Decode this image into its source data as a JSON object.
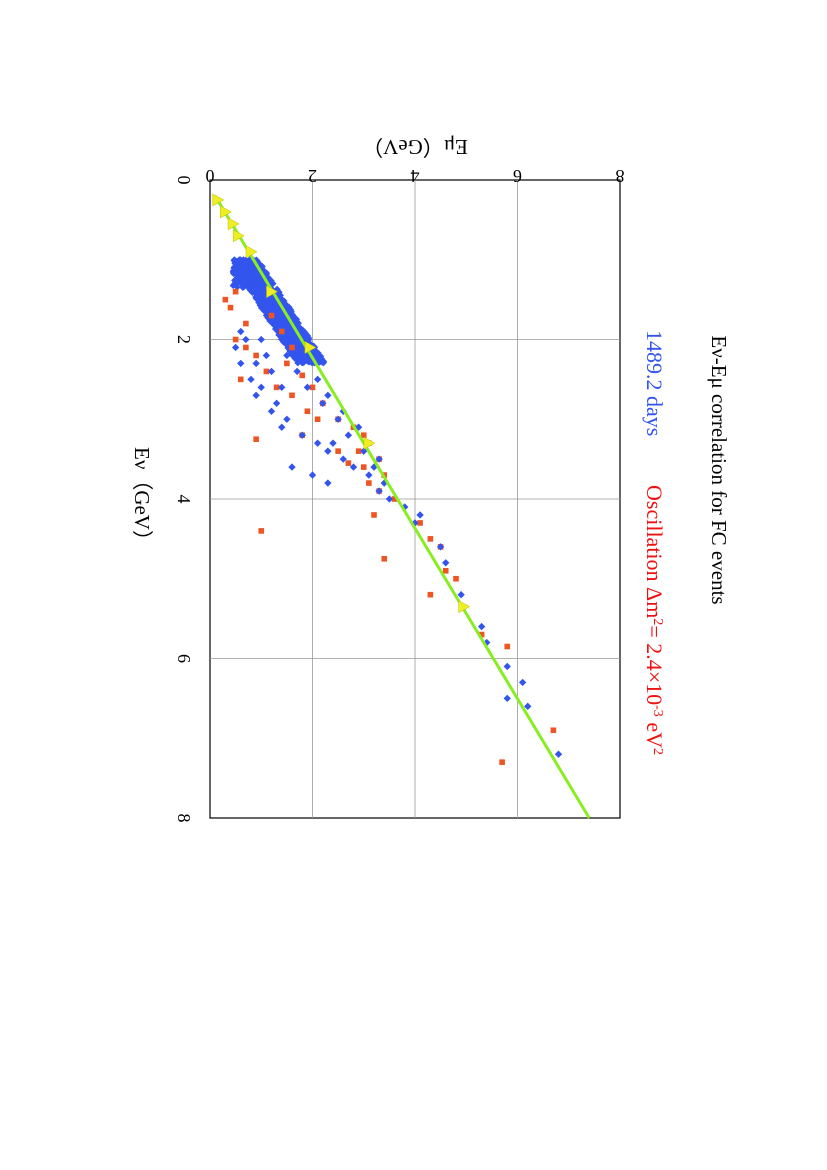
{
  "chart_data": {
    "type": "scatter",
    "title": "Eν-Eμ correlation for FC events",
    "exposure_label": "1489.2 days",
    "oscillation_label": {
      "prefix": "Oscillation Δm",
      "sup1": "2",
      "mid": "= 2.4×10",
      "sup2": "-3",
      "unit": " eV",
      "sup3": "2"
    },
    "xlabel": "Eν（GeV）",
    "ylabel": "Eμ（GeV）",
    "xlim": [
      0,
      8
    ],
    "ylim": [
      0,
      8
    ],
    "x_ticks": [
      "0",
      "2",
      "4",
      "6",
      "8"
    ],
    "y_ticks": [
      "0",
      "2",
      "4",
      "6",
      "8"
    ],
    "grid": true,
    "orientation": "rotated 90° clockwise on the page",
    "colors": {
      "blue_series": "#3355ee",
      "red_series": "#ee5522",
      "fit_line": "#88ee22",
      "markers": "#eeee22",
      "title_exposure": "#3355ee",
      "title_oscillation": "#ee1111"
    },
    "series": [
      {
        "marker": "diamond",
        "color": "#3355ee",
        "dense_band": {
          "x": [
            1.0,
            2.3
          ],
          "y_min_offset": -0.6,
          "y_max_offset": -0.05
        },
        "points": [
          [
            1.9,
            0.6
          ],
          [
            2.0,
            0.7
          ],
          [
            2.1,
            0.5
          ],
          [
            2.3,
            0.6
          ],
          [
            2.3,
            0.9
          ],
          [
            2.5,
            0.8
          ],
          [
            2.6,
            1.0
          ],
          [
            2.7,
            0.9
          ],
          [
            2.8,
            1.3
          ],
          [
            2.9,
            1.2
          ],
          [
            3.0,
            1.5
          ],
          [
            3.1,
            1.4
          ],
          [
            3.2,
            1.8
          ],
          [
            3.3,
            2.1
          ],
          [
            3.4,
            2.3
          ],
          [
            3.5,
            2.6
          ],
          [
            3.6,
            1.6
          ],
          [
            3.7,
            2.0
          ],
          [
            3.8,
            2.3
          ],
          [
            3.6,
            2.8
          ],
          [
            3.7,
            3.1
          ],
          [
            3.9,
            3.3
          ],
          [
            4.0,
            3.5
          ],
          [
            4.1,
            3.8
          ],
          [
            2.6,
            1.9
          ],
          [
            2.8,
            2.2
          ],
          [
            3.0,
            2.5
          ],
          [
            3.2,
            2.7
          ],
          [
            2.4,
            1.7
          ],
          [
            2.2,
            1.5
          ],
          [
            2.0,
            1.4
          ],
          [
            3.3,
            2.4
          ],
          [
            4.2,
            4.1
          ],
          [
            4.3,
            4.0
          ],
          [
            4.6,
            4.5
          ],
          [
            4.8,
            4.6
          ],
          [
            5.2,
            4.9
          ],
          [
            5.6,
            5.3
          ],
          [
            5.8,
            5.4
          ],
          [
            6.1,
            5.8
          ],
          [
            6.3,
            6.1
          ],
          [
            6.6,
            6.2
          ],
          [
            6.5,
            5.8
          ],
          [
            7.2,
            6.8
          ],
          [
            3.5,
            3.3
          ],
          [
            3.8,
            3.4
          ],
          [
            2.9,
            2.6
          ],
          [
            3.1,
            2.9
          ],
          [
            2.7,
            2.3
          ],
          [
            2.5,
            2.1
          ],
          [
            3.4,
            3.0
          ],
          [
            3.6,
            3.2
          ],
          [
            2.0,
            1.0
          ],
          [
            2.2,
            1.1
          ],
          [
            2.4,
            1.2
          ],
          [
            2.6,
            1.4
          ]
        ]
      },
      {
        "marker": "square",
        "color": "#ee5522",
        "points": [
          [
            1.4,
            0.5
          ],
          [
            1.5,
            0.3
          ],
          [
            1.6,
            0.4
          ],
          [
            1.8,
            0.7
          ],
          [
            2.0,
            0.5
          ],
          [
            2.1,
            0.7
          ],
          [
            2.2,
            0.9
          ],
          [
            2.5,
            0.6
          ],
          [
            2.4,
            1.1
          ],
          [
            2.6,
            1.3
          ],
          [
            2.7,
            1.6
          ],
          [
            2.8,
            2.2
          ],
          [
            3.0,
            2.5
          ],
          [
            3.1,
            2.8
          ],
          [
            3.2,
            3.0
          ],
          [
            3.3,
            3.1
          ],
          [
            3.4,
            2.9
          ],
          [
            3.5,
            3.3
          ],
          [
            3.7,
            3.4
          ],
          [
            3.9,
            3.3
          ],
          [
            4.2,
            3.2
          ],
          [
            4.4,
            1.0
          ],
          [
            4.75,
            3.4
          ],
          [
            4.0,
            3.6
          ],
          [
            4.3,
            4.1
          ],
          [
            4.5,
            4.3
          ],
          [
            4.6,
            4.5
          ],
          [
            4.9,
            4.6
          ],
          [
            5.0,
            4.8
          ],
          [
            5.2,
            4.3
          ],
          [
            5.7,
            5.3
          ],
          [
            5.85,
            5.8
          ],
          [
            6.9,
            6.7
          ],
          [
            7.3,
            5.7
          ],
          [
            2.9,
            1.9
          ],
          [
            3.2,
            1.8
          ],
          [
            3.25,
            0.9
          ],
          [
            3.6,
            3.0
          ],
          [
            3.8,
            3.1
          ],
          [
            2.3,
            1.5
          ],
          [
            1.9,
            1.4
          ],
          [
            1.7,
            1.2
          ],
          [
            2.1,
            1.6
          ],
          [
            3.0,
            2.1
          ],
          [
            3.4,
            2.5
          ],
          [
            3.55,
            2.7
          ],
          [
            2.45,
            1.8
          ],
          [
            2.6,
            2.0
          ]
        ]
      }
    ],
    "fit_line": {
      "x": [
        0.2,
        8.0
      ],
      "y": [
        0.1,
        7.4
      ]
    },
    "marker_points": [
      [
        0.25,
        0.15
      ],
      [
        0.4,
        0.3
      ],
      [
        0.55,
        0.45
      ],
      [
        0.7,
        0.55
      ],
      [
        0.9,
        0.8
      ],
      [
        1.4,
        1.2
      ],
      [
        2.1,
        1.95
      ],
      [
        3.3,
        3.1
      ],
      [
        5.35,
        4.95
      ]
    ]
  }
}
